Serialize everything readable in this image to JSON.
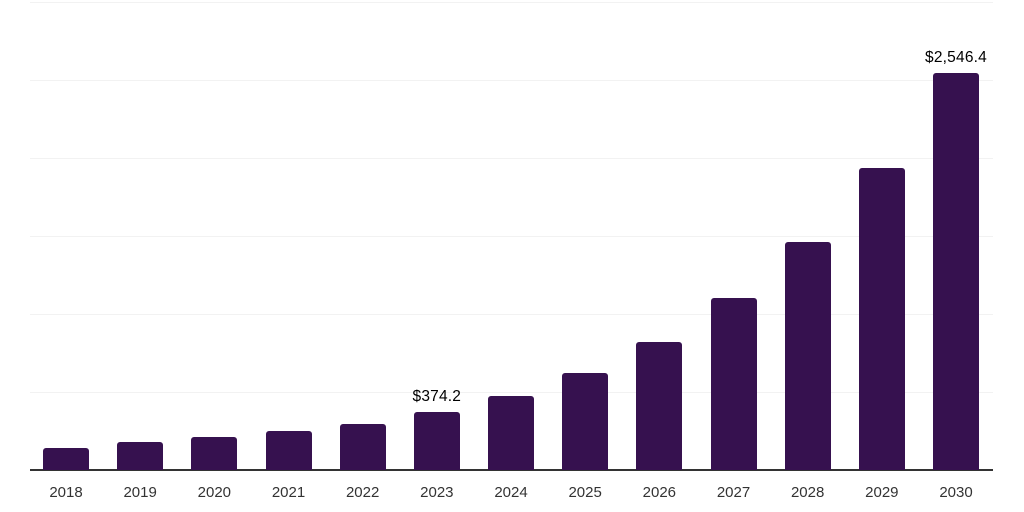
{
  "chart_data": {
    "type": "bar",
    "title": "",
    "xlabel": "",
    "ylabel": "",
    "categories": [
      "2018",
      "2019",
      "2020",
      "2021",
      "2022",
      "2023",
      "2024",
      "2025",
      "2026",
      "2027",
      "2028",
      "2029",
      "2030"
    ],
    "values": [
      141,
      177,
      209,
      247,
      295,
      374.2,
      476,
      621,
      819,
      1101,
      1459,
      1939,
      2546.4
    ],
    "value_labels": [
      "",
      "",
      "",
      "",
      "",
      "$374.2",
      "",
      "",
      "",
      "",
      "",
      "",
      "$2,546.4"
    ],
    "ylim": [
      0,
      3000
    ],
    "gridline_interval": 500,
    "grid": true,
    "legend": false,
    "colors": {
      "bar": "#36114F",
      "gridline": "#f2f2f2",
      "axis_line": "#333333",
      "tick_label": "#333333",
      "value_label": "#000000"
    }
  }
}
